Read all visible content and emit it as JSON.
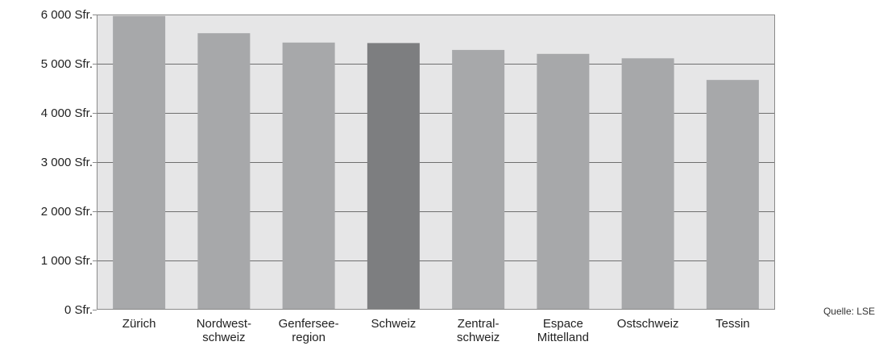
{
  "chart_data": {
    "type": "bar",
    "categories": [
      [
        "Zürich"
      ],
      [
        "Nordwest-",
        "schweiz"
      ],
      [
        "Genfersee-",
        "region"
      ],
      [
        "Schweiz"
      ],
      [
        "Zentral-",
        "schweiz"
      ],
      [
        "Espace",
        "Mittelland"
      ],
      [
        "Ostschweiz"
      ],
      [
        "Tessin"
      ]
    ],
    "values": [
      5970,
      5620,
      5430,
      5420,
      5280,
      5200,
      5110,
      4670
    ],
    "highlight_index": 3,
    "ylim": [
      0,
      6000
    ],
    "yticks": [
      0,
      1000,
      2000,
      3000,
      4000,
      5000,
      6000
    ],
    "ytick_labels": [
      "0 Sfr.",
      "1 000 Sfr.",
      "2 000 Sfr.",
      "3 000 Sfr.",
      "4 000 Sfr.",
      "5 000 Sfr.",
      "6 000 Sfr."
    ],
    "grid": true,
    "colors": {
      "bar": "#a7a8aa",
      "bar_highlight": "#7d7e80",
      "plot_background": "#e6e6e7",
      "gridline": "#6f6f6f",
      "frame": "#8a8a8a"
    },
    "source": "Quelle: LSE"
  }
}
